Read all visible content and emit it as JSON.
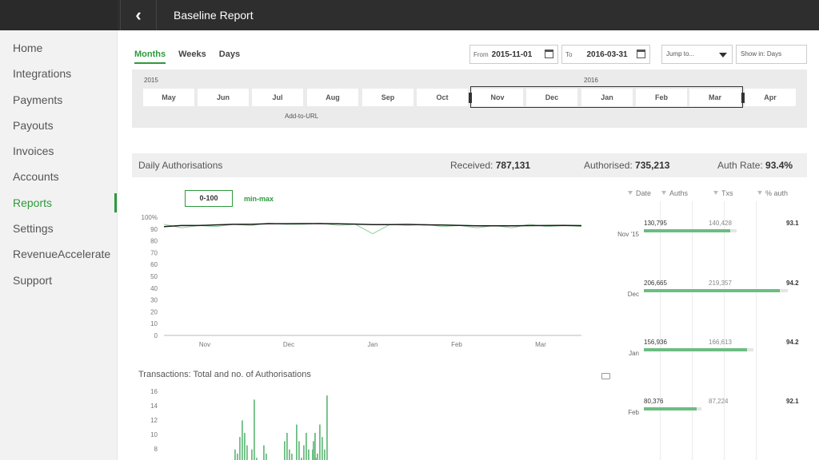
{
  "header": {
    "title": "Baseline Report",
    "back_icon": "chevron-left-icon"
  },
  "sidebar": {
    "items": [
      {
        "label": "Home"
      },
      {
        "label": "Integrations"
      },
      {
        "label": "Payments"
      },
      {
        "label": "Payouts"
      },
      {
        "label": "Invoices"
      },
      {
        "label": "Accounts"
      },
      {
        "label": "Reports",
        "active": true
      },
      {
        "label": "Settings"
      },
      {
        "label": "RevenueAccelerate"
      },
      {
        "label": "Support"
      }
    ]
  },
  "tabs": [
    "Months",
    "Weeks",
    "Days"
  ],
  "date_from": {
    "label": "From",
    "value": "2015-11-01"
  },
  "date_to": {
    "label": "To",
    "value": "2016-03-31"
  },
  "jump_to": "Jump to...",
  "show_in": "Show in: Days",
  "timeline": {
    "year_left": "2015",
    "year_right": "2016",
    "months": [
      "May",
      "Jun",
      "Jul",
      "Aug",
      "Sep",
      "Oct",
      "Nov",
      "Dec",
      "Jan",
      "Feb",
      "Mar",
      "Apr"
    ],
    "add_to_url": "Add-to-URL"
  },
  "stats": {
    "title": "Daily Authorisations",
    "received_label": "Received:",
    "received": "787,131",
    "authorised_label": "Authorised:",
    "authorised": "735,213",
    "rate_label": "Auth Rate:",
    "rate": "93.4%"
  },
  "range_toggle": {
    "zoom": "0-100",
    "minmax": "min-max"
  },
  "chart2_title": "Transactions: Total and no. of Authorisations",
  "table": {
    "headers": [
      "Date",
      "Auths",
      "Txs",
      "% auth"
    ],
    "rows": [
      {
        "date": "Nov '15",
        "auths": "130,795",
        "txs": "140,428",
        "pct": "93.1",
        "auths_n": 130795,
        "txs_n": 140428
      },
      {
        "date": "Dec",
        "auths": "206,665",
        "txs": "219,357",
        "pct": "94.2",
        "auths_n": 206665,
        "txs_n": 219357
      },
      {
        "date": "Jan",
        "auths": "156,936",
        "txs": "166,613",
        "pct": "94.2",
        "auths_n": 156936,
        "txs_n": 166613
      },
      {
        "date": "Feb",
        "auths": "80,376",
        "txs": "87,224",
        "pct": "92.1",
        "auths_n": 80376,
        "txs_n": 87224
      }
    ]
  },
  "colors": {
    "accent": "#2e9a3e",
    "bar": "#6cbd82",
    "line_dark": "#1a1a1a",
    "line_light": "#8fd19a"
  },
  "chart_data": [
    {
      "type": "line",
      "x_ticks": [
        "Nov",
        "Dec",
        "Jan",
        "Feb",
        "Mar"
      ],
      "y_ticks": [
        "100%",
        "90",
        "80",
        "70",
        "60",
        "50",
        "40",
        "30",
        "20",
        "10",
        "0"
      ],
      "ylim": [
        0,
        100
      ],
      "series": [
        {
          "values": [
            92,
            93,
            93,
            93.5,
            94,
            94,
            94.5,
            94.5,
            94.6,
            94.6,
            94.4,
            94.2,
            93.8,
            93.7,
            93.9,
            93.6,
            93.4,
            93.1,
            92.8,
            92.7,
            92.8,
            92.9,
            93,
            93.1,
            92.9
          ]
        },
        {
          "values": [
            94,
            91,
            93,
            92,
            94,
            93,
            95,
            94,
            94,
            95,
            93,
            94,
            86,
            94,
            93,
            94,
            92,
            93,
            91,
            93,
            91,
            94,
            92,
            93,
            92
          ]
        }
      ]
    },
    {
      "type": "bar",
      "title": "Transactions: Total and no. of Authorisations",
      "y_ticks": [
        "16",
        "14",
        "12",
        "10",
        "8"
      ],
      "ylim": [
        6,
        16
      ],
      "values": [
        9,
        8.5,
        10.5,
        12.5,
        11,
        9.5,
        7,
        9,
        15,
        8,
        7.5,
        7,
        9.5,
        8.5,
        10,
        11,
        9,
        8.5,
        7.5,
        12,
        10,
        8,
        9.5,
        11,
        9,
        7.5,
        10,
        8,
        7,
        9,
        11,
        8.5,
        12,
        10.5,
        9,
        15.5
      ]
    }
  ]
}
